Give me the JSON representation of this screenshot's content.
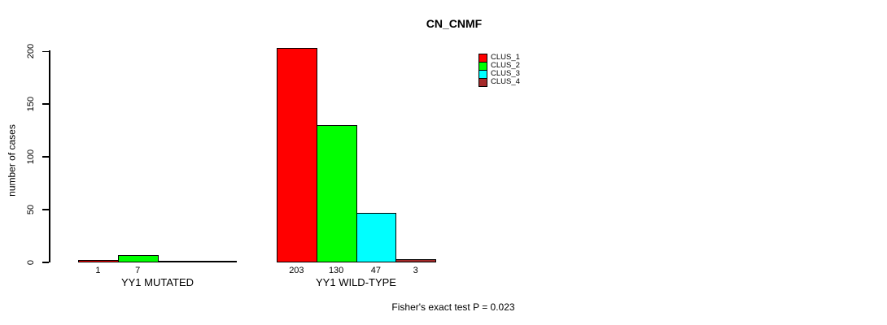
{
  "title": "CN_CNMF",
  "footer": "Fisher's exact test P = 0.023",
  "legend": {
    "items": [
      {
        "label": "CLUS_1",
        "color": "#FF0000"
      },
      {
        "label": "CLUS_2",
        "color": "#00FF00"
      },
      {
        "label": "CLUS_3",
        "color": "#00FFFF"
      },
      {
        "label": "CLUS_4",
        "color": "#A52A2A"
      }
    ]
  },
  "chart_data": {
    "type": "bar",
    "title": "CN_CNMF",
    "xlabel": "",
    "ylabel": "number of cases",
    "ylim": [
      0,
      200
    ],
    "yticks": [
      0,
      50,
      100,
      150,
      200
    ],
    "grid": false,
    "legend_position": "top-right",
    "categories": [
      "YY1 MUTATED",
      "YY1 WILD-TYPE"
    ],
    "series": [
      {
        "name": "CLUS_1",
        "color": "#FF0000",
        "values": [
          1,
          203
        ]
      },
      {
        "name": "CLUS_2",
        "color": "#00FF00",
        "values": [
          7,
          130
        ]
      },
      {
        "name": "CLUS_3",
        "color": "#00FFFF",
        "values": [
          0,
          47
        ]
      },
      {
        "name": "CLUS_4",
        "color": "#A52A2A",
        "values": [
          0,
          3
        ]
      }
    ],
    "bar_value_labels_shown_only_when_nonzero": true,
    "annotation": "Fisher's exact test P = 0.023"
  }
}
